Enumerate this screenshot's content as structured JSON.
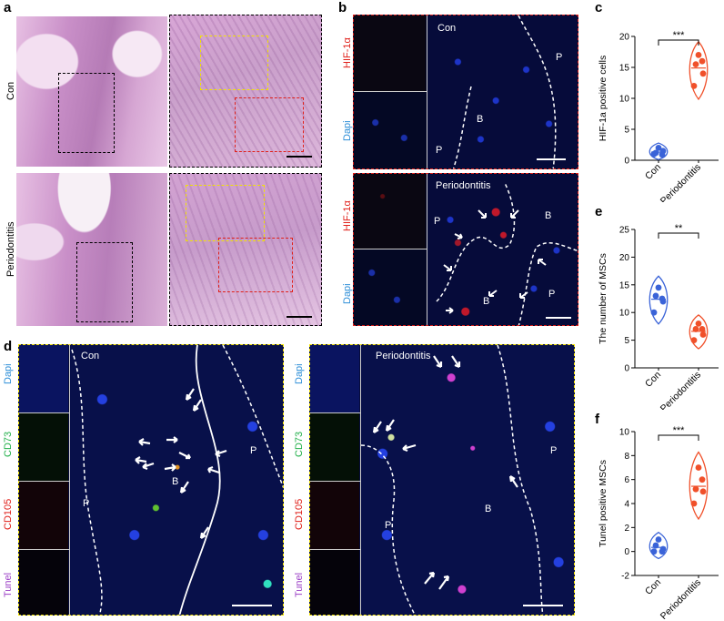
{
  "panels": {
    "a": "a",
    "b": "b",
    "c": "c",
    "d": "d",
    "e": "e",
    "f": "f"
  },
  "panel_a": {
    "row_labels": [
      "Con",
      "Periodontitis"
    ],
    "colors": {
      "he_bg": "#d9a9d6",
      "he_dark": "#b27ab4",
      "box_black": "#000000",
      "box_yellow": "#f2e200",
      "box_red": "#e0201a"
    }
  },
  "panel_b": {
    "channel_top": "HIF-1α",
    "channel_bottom": "Dapi",
    "top_title": "Con",
    "bottom_title": "Periodontitis",
    "labels_top": [
      "P",
      "B",
      "P"
    ],
    "labels_bottom": [
      "P",
      "B",
      "B",
      "P"
    ],
    "colors": {
      "hif": "#e0201a",
      "dapi": "#2f8fd8",
      "border": "#e0201a"
    }
  },
  "panel_d": {
    "channels": [
      "Dapi",
      "CD73",
      "CD105",
      "Tunel"
    ],
    "left_title": "Con",
    "right_title": "Periodontitis",
    "labels_left": [
      "P",
      "B",
      "P"
    ],
    "labels_right": [
      "P",
      "B",
      "P"
    ],
    "colors": {
      "dapi": "#2f8fd8",
      "cd73": "#22b04a",
      "cd105": "#e0201a",
      "tunel": "#9b3fc6",
      "border": "#f2e200"
    }
  },
  "chart_data": [
    {
      "id": "c",
      "type": "scatter",
      "ylabel": "HIF-1a positive cells",
      "categories": [
        "Con",
        "Periodontitis"
      ],
      "ylim": [
        0,
        20
      ],
      "yticks": [
        0,
        5,
        10,
        15,
        20
      ],
      "significance": "***",
      "series": [
        {
          "color": "#3a63d8",
          "values": [
            1.0,
            1.5,
            1.2,
            0.9,
            2.0
          ]
        },
        {
          "color": "#f0502a",
          "values": [
            12.0,
            14.0,
            15.5,
            16.0,
            17.0
          ]
        }
      ]
    },
    {
      "id": "e",
      "type": "scatter",
      "ylabel": "The number of MSCs",
      "categories": [
        "Con",
        "Periodontitis"
      ],
      "ylim": [
        0,
        25
      ],
      "yticks": [
        0,
        5,
        10,
        15,
        20,
        25
      ],
      "significance": "**",
      "series": [
        {
          "color": "#3a63d8",
          "values": [
            10.0,
            12.0,
            13.0,
            12.5,
            14.5
          ]
        },
        {
          "color": "#f0502a",
          "values": [
            5.0,
            6.0,
            7.0,
            7.0,
            8.0
          ]
        }
      ]
    },
    {
      "id": "f",
      "type": "scatter",
      "ylabel": "Tunel positive MSCs",
      "categories": [
        "Con",
        "Periodontitis"
      ],
      "ylim": [
        -2,
        10
      ],
      "yticks": [
        -2,
        0,
        2,
        4,
        6,
        8,
        10
      ],
      "significance": "***",
      "series": [
        {
          "color": "#3a63d8",
          "values": [
            0.0,
            0.2,
            0.5,
            0.0,
            1.0
          ]
        },
        {
          "color": "#f0502a",
          "values": [
            4.0,
            5.0,
            5.2,
            6.0,
            7.0
          ]
        }
      ]
    }
  ]
}
